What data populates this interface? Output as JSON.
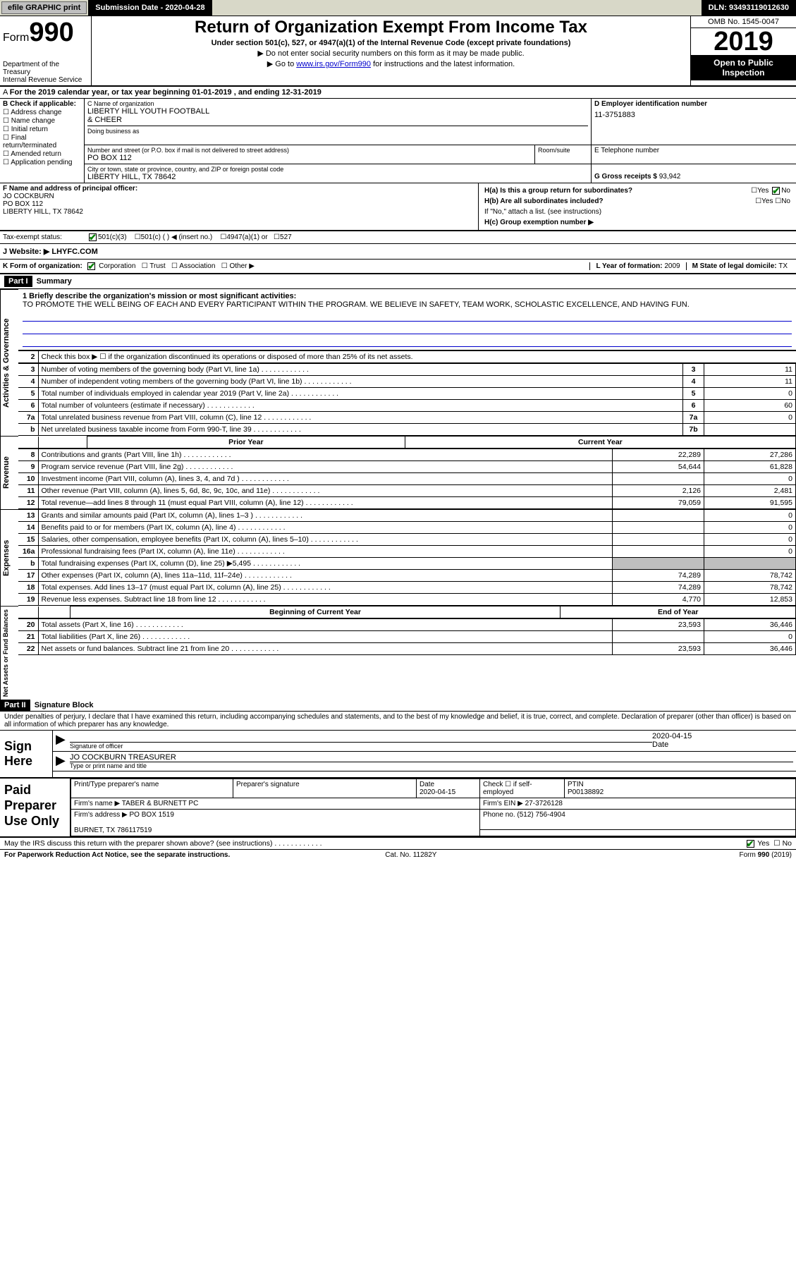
{
  "topbar": {
    "efile": "efile GRAPHIC print",
    "submission": "Submission Date - 2020-04-28",
    "dln": "DLN: 93493119012630"
  },
  "header": {
    "form_label": "Form",
    "form_number": "990",
    "title": "Return of Organization Exempt From Income Tax",
    "subtitle": "Under section 501(c), 527, or 4947(a)(1) of the Internal Revenue Code (except private foundations)",
    "note1": "▶ Do not enter social security numbers on this form as it may be made public.",
    "note2_prefix": "▶ Go to ",
    "note2_link": "www.irs.gov/Form990",
    "note2_suffix": " for instructions and the latest information.",
    "dept": "Department of the Treasury\nInternal Revenue Service",
    "omb": "OMB No. 1545-0047",
    "year": "2019",
    "open_public": "Open to Public Inspection"
  },
  "line_a": "For the 2019 calendar year, or tax year beginning 01-01-2019    , and ending 12-31-2019",
  "block_b": {
    "title": "B Check if applicable:",
    "opts": [
      "Address change",
      "Name change",
      "Initial return",
      "Final return/terminated",
      "Amended return",
      "Application pending"
    ]
  },
  "block_c": {
    "name_lbl": "C Name of organization",
    "name": "LIBERTY HILL YOUTH FOOTBALL\n& CHEER",
    "dba_lbl": "Doing business as",
    "addr_lbl": "Number and street (or P.O. box if mail is not delivered to street address)",
    "addr": "PO BOX 112",
    "room_lbl": "Room/suite",
    "city_lbl": "City or town, state or province, country, and ZIP or foreign postal code",
    "city": "LIBERTY HILL, TX  78642"
  },
  "block_d": {
    "lbl": "D Employer identification number",
    "val": "11-3751883"
  },
  "block_e": {
    "lbl": "E Telephone number"
  },
  "block_g": {
    "lbl": "G Gross receipts $",
    "val": "93,942"
  },
  "block_f": {
    "lbl": "F  Name and address of principal officer:",
    "name": "JO COCKBURN",
    "addr": "PO BOX 112",
    "city": "LIBERTY HILL, TX  78642"
  },
  "block_h": {
    "ha": "H(a)  Is this a group return for subordinates?",
    "hb": "H(b)  Are all subordinates included?",
    "hb_note": "If \"No,\" attach a list. (see instructions)",
    "hc": "H(c)  Group exemption number ▶",
    "yes": "Yes",
    "no": "No"
  },
  "tax_exempt": {
    "lbl": "Tax-exempt status:",
    "o1": "501(c)(3)",
    "o2": "501(c) (  ) ◀ (insert no.)",
    "o3": "4947(a)(1) or",
    "o4": "527"
  },
  "website": {
    "lbl": "J   Website: ▶",
    "val": " LHYFC.COM"
  },
  "klm": {
    "k": "K Form of organization:",
    "k_opts": [
      "Corporation",
      "Trust",
      "Association",
      "Other ▶"
    ],
    "l_lbl": "L Year of formation:",
    "l_val": "2009",
    "m_lbl": "M State of legal domicile:",
    "m_val": "TX"
  },
  "part1": {
    "header": "Part I",
    "title": "Summary",
    "side_labels": [
      "Activities & Governance",
      "Revenue",
      "Expenses",
      "Net Assets or Fund Balances"
    ],
    "line1_lbl": "1   Briefly describe the organization's mission or most significant activities:",
    "line1_text": "TO PROMOTE THE WELL BEING OF EACH AND EVERY PARTICIPANT WITHIN THE PROGRAM. WE BELIEVE IN SAFETY, TEAM WORK, SCHOLASTIC EXCELLENCE, AND HAVING FUN.",
    "line2": "Check this box ▶ ☐ if the organization discontinued its operations or disposed of more than 25% of its net assets.",
    "gov_rows": [
      {
        "n": "3",
        "d": "Number of voting members of the governing body (Part VI, line 1a)",
        "box": "3",
        "v": "11"
      },
      {
        "n": "4",
        "d": "Number of independent voting members of the governing body (Part VI, line 1b)",
        "box": "4",
        "v": "11"
      },
      {
        "n": "5",
        "d": "Total number of individuals employed in calendar year 2019 (Part V, line 2a)",
        "box": "5",
        "v": "0"
      },
      {
        "n": "6",
        "d": "Total number of volunteers (estimate if necessary)",
        "box": "6",
        "v": "60"
      },
      {
        "n": "7a",
        "d": "Total unrelated business revenue from Part VIII, column (C), line 12",
        "box": "7a",
        "v": "0"
      },
      {
        "n": "b",
        "d": "Net unrelated business taxable income from Form 990-T, line 39",
        "box": "7b",
        "v": ""
      }
    ],
    "py_hdr": "Prior Year",
    "cy_hdr": "Current Year",
    "rev_rows": [
      {
        "n": "8",
        "d": "Contributions and grants (Part VIII, line 1h)",
        "py": "22,289",
        "cy": "27,286"
      },
      {
        "n": "9",
        "d": "Program service revenue (Part VIII, line 2g)",
        "py": "54,644",
        "cy": "61,828"
      },
      {
        "n": "10",
        "d": "Investment income (Part VIII, column (A), lines 3, 4, and 7d )",
        "py": "",
        "cy": "0"
      },
      {
        "n": "11",
        "d": "Other revenue (Part VIII, column (A), lines 5, 6d, 8c, 9c, 10c, and 11e)",
        "py": "2,126",
        "cy": "2,481"
      },
      {
        "n": "12",
        "d": "Total revenue—add lines 8 through 11 (must equal Part VIII, column (A), line 12)",
        "py": "79,059",
        "cy": "91,595"
      }
    ],
    "exp_rows": [
      {
        "n": "13",
        "d": "Grants and similar amounts paid (Part IX, column (A), lines 1–3 )",
        "py": "",
        "cy": "0"
      },
      {
        "n": "14",
        "d": "Benefits paid to or for members (Part IX, column (A), line 4)",
        "py": "",
        "cy": "0"
      },
      {
        "n": "15",
        "d": "Salaries, other compensation, employee benefits (Part IX, column (A), lines 5–10)",
        "py": "",
        "cy": "0"
      },
      {
        "n": "16a",
        "d": "Professional fundraising fees (Part IX, column (A), line 11e)",
        "py": "",
        "cy": "0"
      },
      {
        "n": "b",
        "d": "Total fundraising expenses (Part IX, column (D), line 25) ▶5,495",
        "py": "shade",
        "cy": "shade"
      },
      {
        "n": "17",
        "d": "Other expenses (Part IX, column (A), lines 11a–11d, 11f–24e)",
        "py": "74,289",
        "cy": "78,742"
      },
      {
        "n": "18",
        "d": "Total expenses. Add lines 13–17 (must equal Part IX, column (A), line 25)",
        "py": "74,289",
        "cy": "78,742"
      },
      {
        "n": "19",
        "d": "Revenue less expenses. Subtract line 18 from line 12",
        "py": "4,770",
        "cy": "12,853"
      }
    ],
    "boy_hdr": "Beginning of Current Year",
    "eoy_hdr": "End of Year",
    "net_rows": [
      {
        "n": "20",
        "d": "Total assets (Part X, line 16)",
        "py": "23,593",
        "cy": "36,446"
      },
      {
        "n": "21",
        "d": "Total liabilities (Part X, line 26)",
        "py": "",
        "cy": "0"
      },
      {
        "n": "22",
        "d": "Net assets or fund balances. Subtract line 21 from line 20",
        "py": "23,593",
        "cy": "36,446"
      }
    ]
  },
  "part2": {
    "header": "Part II",
    "title": "Signature Block",
    "decl": "Under penalties of perjury, I declare that I have examined this return, including accompanying schedules and statements, and to the best of my knowledge and belief, it is true, correct, and complete. Declaration of preparer (other than officer) is based on all information of which preparer has any knowledge.",
    "sign_here": "Sign Here",
    "sig_lbl": "Signature of officer",
    "date_lbl": "Date",
    "date_val": "2020-04-15",
    "name": "JO COCKBURN  TREASURER",
    "name_lbl": "Type or print name and title",
    "paid": "Paid Preparer Use Only",
    "prep_name_lbl": "Print/Type preparer's name",
    "prep_sig_lbl": "Preparer's signature",
    "prep_date_lbl": "Date",
    "prep_date": "2020-04-15",
    "check_lbl": "Check ☐ if self-employed",
    "ptin_lbl": "PTIN",
    "ptin": "P00138892",
    "firm_name_lbl": "Firm's name     ▶",
    "firm_name": "TABER & BURNETT PC",
    "firm_ein_lbl": "Firm's EIN ▶",
    "firm_ein": "27-3726128",
    "firm_addr_lbl": "Firm's address ▶",
    "firm_addr": "PO BOX 1519",
    "firm_city": "BURNET, TX  786117519",
    "phone_lbl": "Phone no.",
    "phone": "(512) 756-4904",
    "discuss": "May the IRS discuss this return with the preparer shown above? (see instructions)",
    "yes": "Yes",
    "no": "No"
  },
  "footer": {
    "left": "For Paperwork Reduction Act Notice, see the separate instructions.",
    "mid": "Cat. No. 11282Y",
    "right": "Form 990 (2019)"
  },
  "colors": {
    "black": "#000000",
    "link": "#0000cc",
    "shade": "#bfbfbf",
    "check": "#008000",
    "topbar_bg": "#d8d8c8"
  }
}
